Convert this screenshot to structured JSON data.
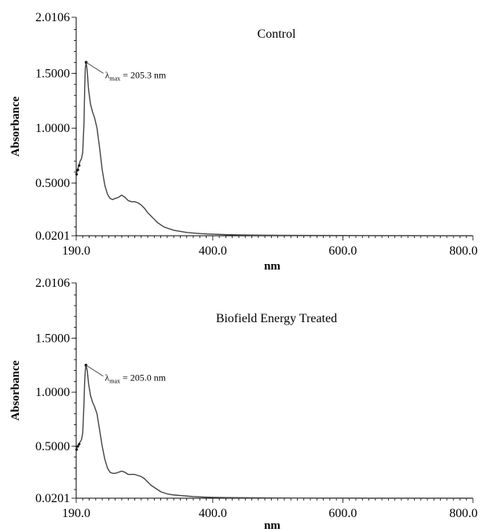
{
  "chart_data": [
    {
      "type": "line",
      "title": "Control",
      "xlabel": "nm",
      "ylabel": "Absorbance",
      "xlim": [
        190.0,
        800.0
      ],
      "ylim": [
        0.0201,
        2.0106
      ],
      "xticks": [
        "190.0",
        "400.0",
        "600.0",
        "800.0"
      ],
      "yticks": [
        "0.0201",
        "0.5000",
        "1.0000",
        "1.5000",
        "2.0106"
      ],
      "grid": false,
      "annotation": {
        "symbol": "λ",
        "subscript": "max",
        "text": " = 205.3 nm",
        "x": 205.3,
        "y": 1.6
      },
      "series": [
        {
          "color": "#444444",
          "x": [
            190,
            192,
            194,
            196,
            198,
            200,
            202,
            203,
            204,
            205.3,
            207,
            209,
            212,
            215,
            218,
            222,
            226,
            230,
            234,
            238,
            242,
            246,
            250,
            255,
            260,
            265,
            270,
            275,
            280,
            285,
            290,
            295,
            300,
            305,
            310,
            315,
            320,
            325,
            330,
            340,
            350,
            360,
            370,
            380,
            390,
            400,
            420,
            440,
            460,
            480,
            500,
            550,
            600,
            650,
            700,
            750,
            800
          ],
          "y": [
            0.58,
            0.62,
            0.66,
            0.7,
            0.72,
            0.78,
            1.05,
            1.35,
            1.55,
            1.6,
            1.52,
            1.35,
            1.22,
            1.15,
            1.1,
            1.0,
            0.82,
            0.62,
            0.48,
            0.4,
            0.36,
            0.35,
            0.36,
            0.37,
            0.39,
            0.37,
            0.34,
            0.33,
            0.33,
            0.32,
            0.3,
            0.27,
            0.23,
            0.2,
            0.17,
            0.14,
            0.12,
            0.1,
            0.09,
            0.07,
            0.06,
            0.05,
            0.045,
            0.04,
            0.037,
            0.035,
            0.03,
            0.028,
            0.026,
            0.025,
            0.024,
            0.023,
            0.022,
            0.021,
            0.021,
            0.02,
            0.02
          ]
        }
      ]
    },
    {
      "type": "line",
      "title": "Biofield Energy Treated",
      "xlabel": "nm",
      "ylabel": "Absorbance",
      "xlim": [
        190.0,
        800.0
      ],
      "ylim": [
        0.0201,
        2.0106
      ],
      "xticks": [
        "190.0",
        "400.0",
        "600.0",
        "800.0"
      ],
      "yticks": [
        "0.0201",
        "0.5000",
        "1.0000",
        "1.5000",
        "2.0106"
      ],
      "grid": false,
      "annotation": {
        "symbol": "λ",
        "subscript": "max",
        "text": " = 205.0 nm",
        "x": 205.0,
        "y": 1.25
      },
      "series": [
        {
          "color": "#444444",
          "x": [
            190,
            192,
            194,
            196,
            198,
            200,
            202,
            203,
            204,
            205.0,
            207,
            209,
            212,
            215,
            218,
            222,
            226,
            230,
            234,
            238,
            242,
            246,
            250,
            255,
            260,
            265,
            270,
            275,
            280,
            285,
            290,
            295,
            300,
            305,
            310,
            315,
            320,
            325,
            330,
            340,
            350,
            360,
            370,
            380,
            390,
            400,
            420,
            440,
            460,
            480,
            500,
            550,
            600,
            650,
            700,
            750,
            800
          ],
          "y": [
            0.47,
            0.5,
            0.52,
            0.54,
            0.56,
            0.62,
            0.9,
            1.1,
            1.2,
            1.25,
            1.2,
            1.08,
            0.97,
            0.91,
            0.87,
            0.8,
            0.65,
            0.5,
            0.38,
            0.3,
            0.26,
            0.25,
            0.25,
            0.26,
            0.27,
            0.26,
            0.24,
            0.24,
            0.24,
            0.23,
            0.22,
            0.2,
            0.17,
            0.14,
            0.12,
            0.1,
            0.08,
            0.07,
            0.06,
            0.05,
            0.045,
            0.04,
            0.035,
            0.032,
            0.03,
            0.028,
            0.026,
            0.025,
            0.024,
            0.023,
            0.022,
            0.021,
            0.021,
            0.02,
            0.02,
            0.02,
            0.02
          ]
        }
      ]
    }
  ]
}
